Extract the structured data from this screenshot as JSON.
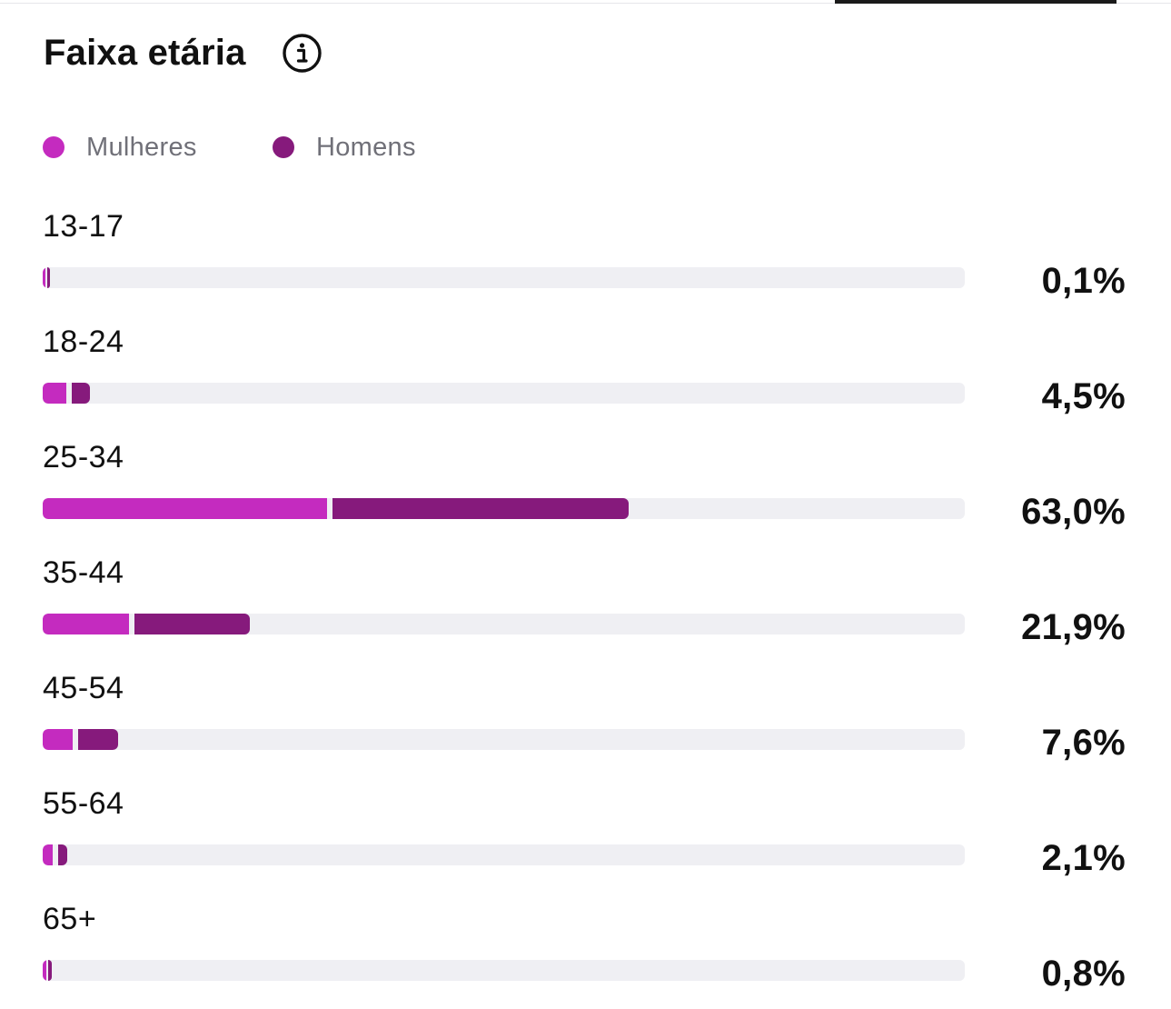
{
  "colors": {
    "women": "#c42bbf",
    "men": "#861a7c",
    "track": "#efeff3"
  },
  "header": {
    "title": "Faixa etária",
    "info_icon": "info-circle-icon"
  },
  "legend": [
    {
      "label": "Mulheres",
      "series": "women"
    },
    {
      "label": "Homens",
      "series": "men"
    }
  ],
  "chart_data": {
    "type": "bar",
    "orientation": "horizontal",
    "stacked": true,
    "title": "Faixa etária",
    "categories": [
      "13-17",
      "18-24",
      "25-34",
      "35-44",
      "45-54",
      "55-64",
      "65+"
    ],
    "totals": [
      "0,1%",
      "4,5%",
      "63,0%",
      "21,9%",
      "7,6%",
      "2,1%",
      "0,8%"
    ],
    "total_values": [
      0.1,
      4.5,
      63.0,
      21.9,
      7.6,
      2.1,
      0.8
    ],
    "series": [
      {
        "name": "Mulheres",
        "values": [
          0.05,
          2.6,
          30.8,
          9.4,
          3.3,
          1.1,
          0.4
        ]
      },
      {
        "name": "Homens",
        "values": [
          0.05,
          1.9,
          32.2,
          12.5,
          4.3,
          1.0,
          0.4
        ]
      }
    ],
    "xlim": [
      0,
      100
    ],
    "legend_position": "top-left",
    "grid": false
  }
}
